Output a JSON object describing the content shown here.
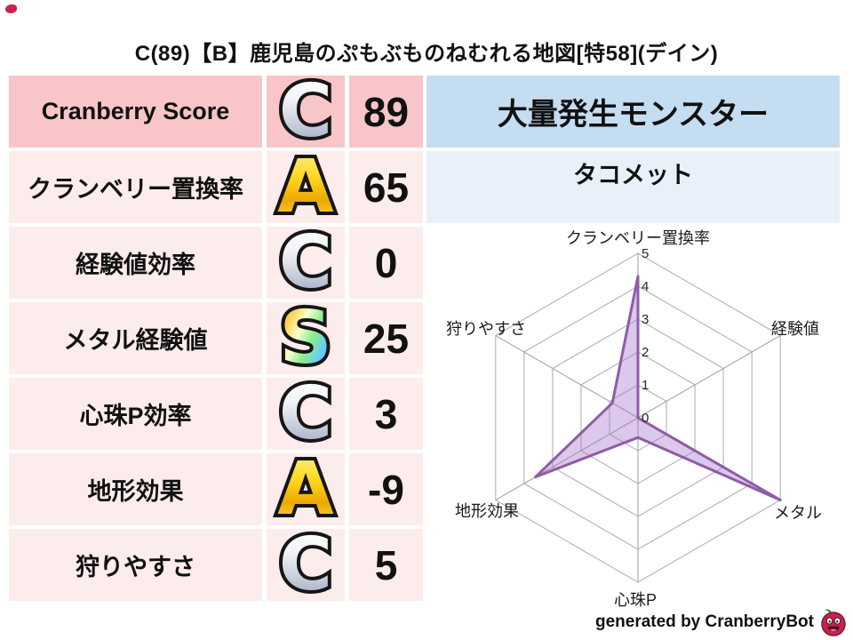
{
  "title": "C(89)【B】鹿児島のぷもぶものねむれる地図[特58](デイン)",
  "stats_table": {
    "rows": [
      {
        "label": "Cranberry Score",
        "grade": "C",
        "grade_style": "silver",
        "value": "89"
      },
      {
        "label": "クランベリー置換率",
        "grade": "A",
        "grade_style": "gold",
        "value": "65"
      },
      {
        "label": "経験値効率",
        "grade": "C",
        "grade_style": "silver",
        "value": "0"
      },
      {
        "label": "メタル経験値",
        "grade": "S",
        "grade_style": "rainbow",
        "value": "25"
      },
      {
        "label": "心珠P効率",
        "grade": "C",
        "grade_style": "silver",
        "value": "3"
      },
      {
        "label": "地形効果",
        "grade": "A",
        "grade_style": "gold",
        "value": "-9"
      },
      {
        "label": "狩りやすさ",
        "grade": "C",
        "grade_style": "silver",
        "value": "5"
      }
    ]
  },
  "monster_panel": {
    "header": "大量発生モンスター",
    "monster_name": "タコメット"
  },
  "chart_data": {
    "type": "radar",
    "categories": [
      "クランベリー置換率",
      "経験値",
      "メタル",
      "心珠P",
      "地形効果",
      "狩りやすさ"
    ],
    "values": [
      4.3,
      0,
      5,
      0.6,
      3.6,
      0.9
    ],
    "rlim": [
      0,
      5
    ],
    "tick_labels": [
      "0",
      "1",
      "2",
      "3",
      "4",
      "5"
    ],
    "grid": true,
    "grid_shape": "hexagon",
    "line_color": "#8e5ca8",
    "fill_color": "#a46ec7",
    "fill_opacity": 0.38
  },
  "footer": {
    "credit": "generated by CranberryBot",
    "icon": "cranberry-bot-icon"
  },
  "colors": {
    "table_header_bg": "#f8c6c8",
    "table_row_bg": "#fdecec",
    "panel_header_bg": "#c5ddf1",
    "panel_row_bg": "#e8f1fa",
    "grid_gray": "#b3b3b3",
    "text": "#111111"
  }
}
